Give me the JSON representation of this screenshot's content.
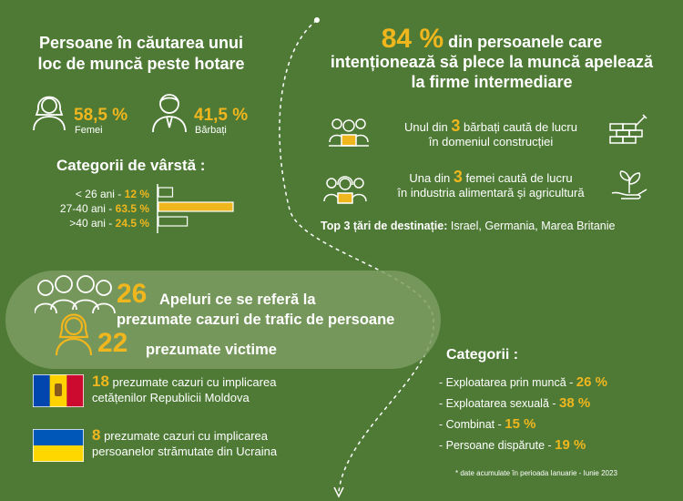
{
  "section1": {
    "title_line1": "Persoane în căutarea unui",
    "title_line2": "loc de muncă peste hotare",
    "women": {
      "percent": "58,5 %",
      "label": "Femei"
    },
    "men": {
      "percent": "41,5 %",
      "label": "Bărbați"
    }
  },
  "age": {
    "title": "Categorii de vârstă :",
    "rows": [
      {
        "label": "< 26 ani",
        "value_text": "12 %",
        "value": 12
      },
      {
        "label": "27-40 ani",
        "value_text": "63.5 %",
        "value": 63.5
      },
      {
        "label": ">40 ani",
        "value_text": "24.5 %",
        "value": 24.5
      }
    ],
    "colors": {
      "highlight": "#f0b61e",
      "outline": "#ffffff"
    }
  },
  "section2": {
    "headline_big": "84 %",
    "headline_rest_1": "din persoanele care",
    "headline_line2": "intenționează să plece la muncă apelează",
    "headline_line3": "la firme intermediare",
    "men_stat": {
      "pre": "Unul din",
      "num": "3",
      "post": "bărbați caută de lucru",
      "line2": "în domeniul construcției"
    },
    "women_stat": {
      "pre": "Una din",
      "num": "3",
      "post": "femei caută de lucru",
      "line2": "în industria alimentară și agricultură"
    },
    "top3_label": "Top 3 țări de destinație:",
    "top3_value": " Israel, Germania, Marea Britanie"
  },
  "section3": {
    "calls_num": "26",
    "calls_text_l1": "Apeluri ce se referă la",
    "calls_text_l2": "prezumate cazuri de trafic de persoane",
    "victims_num": "22",
    "victims_text": "prezumate victime",
    "moldova": {
      "num": "18",
      "text_l1": " prezumate cazuri cu implicarea",
      "text_l2": "cetățenilor Republicii Moldova"
    },
    "ukraine": {
      "num": "8",
      "text_l1": " prezumate cazuri cu implicarea",
      "text_l2": "persoanelor strămutate din Ucraina"
    }
  },
  "section4": {
    "title": "Categorii :",
    "items": [
      {
        "label": "- Exploatarea prin muncă - ",
        "value": "26 %"
      },
      {
        "label": "- Exploatarea sexuală - ",
        "value": "38 %"
      },
      {
        "label": "- Combinat - ",
        "value": "15 %"
      },
      {
        "label": "- Persoane dispărute - ",
        "value": "19 %"
      }
    ],
    "footnote": "* date acumulate în perioada Ianuarie - Iunie 2023"
  },
  "colors": {
    "background": "#4e7a35",
    "accent": "#f0b61e",
    "bubble": "#7e9c62"
  },
  "icons": [
    "woman-icon",
    "man-icon",
    "workers-group-icon",
    "women-group-icon",
    "bricks-trowel-icon",
    "hand-plant-icon",
    "crowd-icon",
    "moldova-flag-icon",
    "ukraine-flag-icon"
  ]
}
